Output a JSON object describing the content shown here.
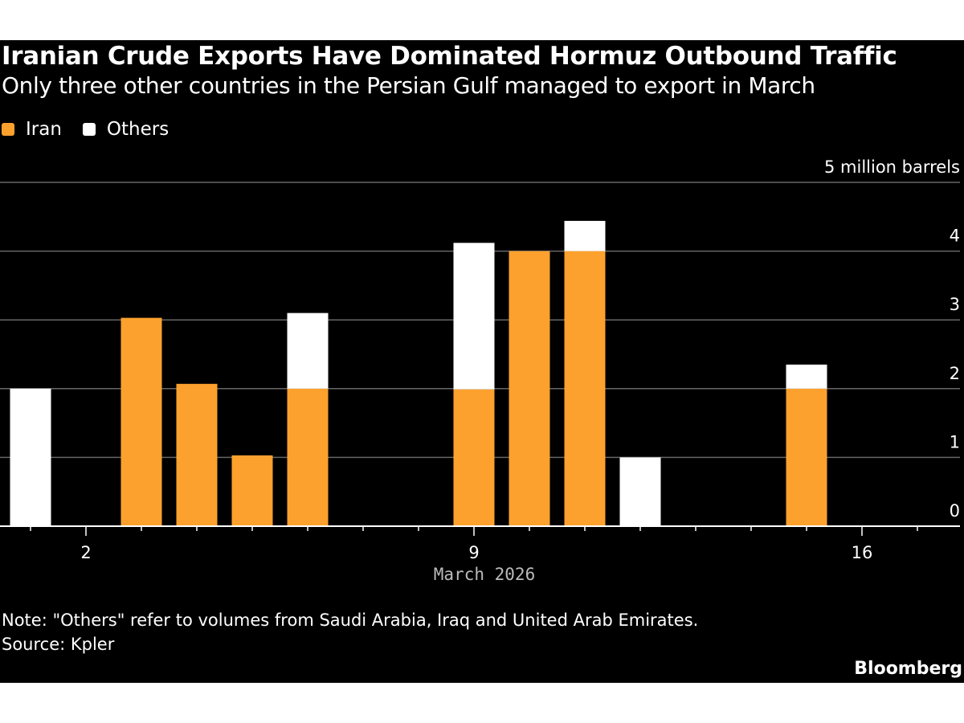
{
  "header": {
    "title": "Iranian Crude Exports Have Dominated Hormuz Outbound Traffic",
    "subtitle": "Only three other countries in the Persian Gulf managed to export in March"
  },
  "footer": {
    "note": "Note: \"Others\" refer to volumes from Saudi Arabia, Iraq and United Arab Emirates.",
    "source": "Source: Kpler",
    "brand": "Bloomberg"
  },
  "chart_data": {
    "type": "bar",
    "stacked": true,
    "title": "Iranian Crude Exports Have Dominated Hormuz Outbound Traffic",
    "xlabel": "March 2026",
    "ylabel": "5 million barrels",
    "x": [
      1,
      2,
      3,
      4,
      5,
      6,
      7,
      8,
      9,
      10,
      11,
      12,
      13,
      14,
      15,
      16,
      17
    ],
    "x_tick_labels": [
      {
        "x": 2,
        "label": "2"
      },
      {
        "x": 9,
        "label": "9"
      },
      {
        "x": 16,
        "label": "16"
      }
    ],
    "y_ticks": [
      0,
      1,
      2,
      3,
      4
    ],
    "ylim": [
      0,
      5
    ],
    "legend": "top-left",
    "grid": true,
    "colors": {
      "Iran": "#fca12e",
      "Others": "#ffffff"
    },
    "series": [
      {
        "name": "Iran",
        "values": [
          0,
          0,
          3.03,
          2.07,
          1.03,
          2.0,
          0,
          0,
          1.99,
          4.0,
          4.0,
          0,
          0,
          0,
          2.0,
          0,
          0
        ]
      },
      {
        "name": "Others",
        "values": [
          2.0,
          0,
          0,
          0,
          0,
          1.1,
          0,
          0,
          2.13,
          0,
          0.44,
          1.0,
          0,
          0,
          0.35,
          0,
          0
        ]
      }
    ]
  }
}
